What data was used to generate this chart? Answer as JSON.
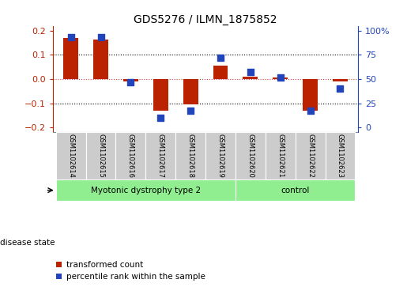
{
  "title": "GDS5276 / ILMN_1875852",
  "categories": [
    "GSM1102614",
    "GSM1102615",
    "GSM1102616",
    "GSM1102617",
    "GSM1102618",
    "GSM1102619",
    "GSM1102620",
    "GSM1102621",
    "GSM1102622",
    "GSM1102623"
  ],
  "red_values": [
    0.17,
    0.165,
    -0.01,
    -0.13,
    -0.105,
    0.055,
    0.01,
    0.005,
    -0.13,
    -0.01
  ],
  "blue_percentiles": [
    93,
    93,
    47,
    10,
    17,
    72,
    57,
    52,
    17,
    40
  ],
  "ylim": [
    -0.22,
    0.22
  ],
  "yticks_left": [
    -0.2,
    -0.1,
    0.0,
    0.1,
    0.2
  ],
  "yticks_right": [
    0,
    25,
    50,
    75,
    100
  ],
  "group1_label": "Myotonic dystrophy type 2",
  "group1_indices": [
    0,
    1,
    2,
    3,
    4,
    5
  ],
  "group2_label": "control",
  "group2_indices": [
    6,
    7,
    8,
    9
  ],
  "disease_state_label": "disease state",
  "legend_red": "transformed count",
  "legend_blue": "percentile rank within the sample",
  "red_color": "#bb2200",
  "blue_color": "#2244bb",
  "group_color": "#90ee90",
  "cell_color": "#cccccc",
  "dotted_line_color": "#000000",
  "zero_line_color": "#cc4444",
  "bar_width": 0.5
}
